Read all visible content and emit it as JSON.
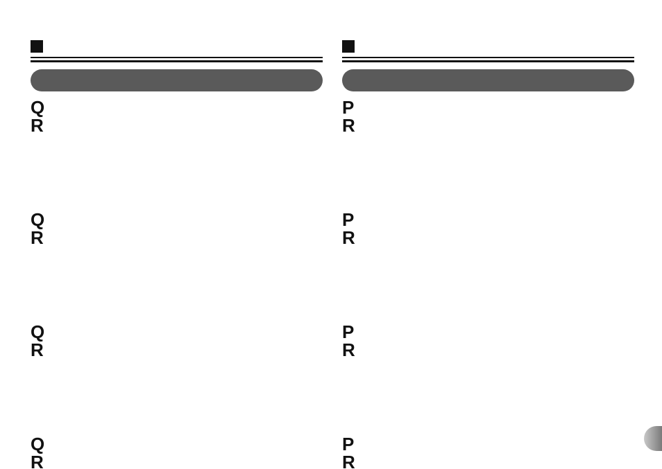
{
  "left": {
    "header": {
      "icon": "■",
      "title": ""
    },
    "pill_label": "",
    "items": [
      {
        "q_label": "Q",
        "q_text": "",
        "r_label": "R",
        "r_text": ""
      },
      {
        "q_label": "Q",
        "q_text": "",
        "r_label": "R",
        "r_text": ""
      },
      {
        "q_label": "Q",
        "q_text": "",
        "r_label": "R",
        "r_text": ""
      },
      {
        "q_label": "Q",
        "q_text": "",
        "r_label": "R",
        "r_text": ""
      }
    ]
  },
  "right": {
    "header": {
      "icon": "■",
      "title": ""
    },
    "pill_label": "",
    "items": [
      {
        "q_label": "P",
        "q_text": "",
        "r_label": "R",
        "r_text": ""
      },
      {
        "q_label": "P",
        "q_text": "",
        "r_label": "R",
        "r_text": ""
      },
      {
        "q_label": "P",
        "q_text": "",
        "r_label": "R",
        "r_text": ""
      },
      {
        "q_label": "P",
        "q_text": "",
        "r_label": "R",
        "r_text": ""
      }
    ]
  },
  "page_tab": ""
}
